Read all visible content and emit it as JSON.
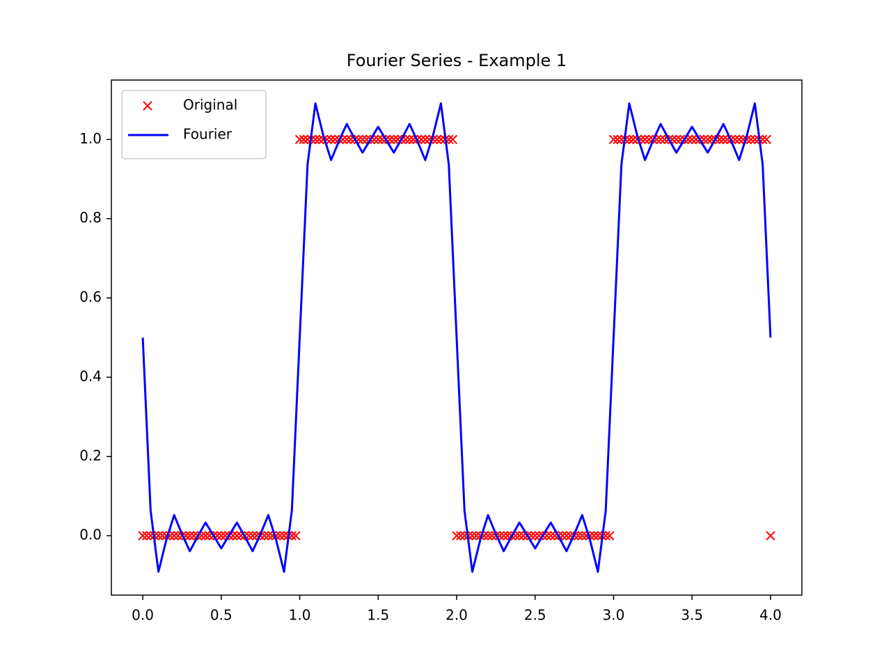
{
  "chart_data": {
    "type": "line",
    "title": "Fourier Series - Example 1",
    "xlim": [
      -0.2,
      4.2
    ],
    "ylim": [
      -0.15,
      1.15
    ],
    "xticks": [
      {
        "value": 0,
        "label": "0.0"
      },
      0.5,
      {
        "value": 1,
        "label": "1.0"
      },
      1.5,
      {
        "value": 2,
        "label": "2.0"
      },
      2.5,
      {
        "value": 3,
        "label": "3.0"
      },
      3.5,
      {
        "value": 4,
        "label": "4.0"
      }
    ],
    "yticks": [
      {
        "value": 0,
        "label": "0.0"
      },
      0.2,
      0.4,
      0.6,
      0.8,
      {
        "value": 1,
        "label": "1.0"
      }
    ],
    "grid": false,
    "legend": "upper left",
    "series": [
      {
        "name": "Original",
        "color": "#ff0000",
        "style": "marker",
        "x": [
          0,
          0.025,
          0.05,
          0.075,
          0.1,
          0.125,
          0.15,
          0.175,
          0.2,
          0.225,
          0.25,
          0.275,
          0.3,
          0.325,
          0.35,
          0.375,
          0.4,
          0.425,
          0.45,
          0.475,
          0.5,
          0.525,
          0.55,
          0.575,
          0.6,
          0.625,
          0.65,
          0.675,
          0.7,
          0.725,
          0.75,
          0.775,
          0.8,
          0.825,
          0.85,
          0.875,
          0.9,
          0.925,
          0.95,
          0.975,
          1,
          1.025,
          1.05,
          1.075,
          1.1,
          1.125,
          1.15,
          1.175,
          1.2,
          1.225,
          1.25,
          1.275,
          1.3,
          1.325,
          1.35,
          1.375,
          1.4,
          1.425,
          1.45,
          1.475,
          1.5,
          1.525,
          1.55,
          1.575,
          1.6,
          1.625,
          1.65,
          1.675,
          1.7,
          1.725,
          1.75,
          1.775,
          1.8,
          1.825,
          1.85,
          1.875,
          1.9,
          1.925,
          1.95,
          1.975,
          2,
          2.025,
          2.05,
          2.075,
          2.1,
          2.125,
          2.15,
          2.175,
          2.2,
          2.225,
          2.25,
          2.275,
          2.3,
          2.325,
          2.35,
          2.375,
          2.4,
          2.425,
          2.45,
          2.475,
          2.5,
          2.525,
          2.55,
          2.575,
          2.6,
          2.625,
          2.65,
          2.675,
          2.7,
          2.725,
          2.75,
          2.775,
          2.8,
          2.825,
          2.85,
          2.875,
          2.9,
          2.925,
          2.95,
          2.975,
          3,
          3.025,
          3.05,
          3.075,
          3.1,
          3.125,
          3.15,
          3.175,
          3.2,
          3.225,
          3.25,
          3.275,
          3.3,
          3.325,
          3.35,
          3.375,
          3.4,
          3.425,
          3.45,
          3.475,
          3.5,
          3.525,
          3.55,
          3.575,
          3.6,
          3.625,
          3.65,
          3.675,
          3.7,
          3.725,
          3.75,
          3.775,
          3.8,
          3.825,
          3.85,
          3.875,
          3.9,
          3.925,
          3.95,
          3.975,
          4
        ],
        "values": [
          0,
          0,
          0,
          0,
          0,
          0,
          0,
          0,
          0,
          0,
          0,
          0,
          0,
          0,
          0,
          0,
          0,
          0,
          0,
          0,
          0,
          0,
          0,
          0,
          0,
          0,
          0,
          0,
          0,
          0,
          0,
          0,
          0,
          0,
          0,
          0,
          0,
          0,
          0,
          0,
          1,
          1,
          1,
          1,
          1,
          1,
          1,
          1,
          1,
          1,
          1,
          1,
          1,
          1,
          1,
          1,
          1,
          1,
          1,
          1,
          1,
          1,
          1,
          1,
          1,
          1,
          1,
          1,
          1,
          1,
          1,
          1,
          1,
          1,
          1,
          1,
          1,
          1,
          1,
          1,
          0,
          0,
          0,
          0,
          0,
          0,
          0,
          0,
          0,
          0,
          0,
          0,
          0,
          0,
          0,
          0,
          0,
          0,
          0,
          0,
          0,
          0,
          0,
          0,
          0,
          0,
          0,
          0,
          0,
          0,
          0,
          0,
          0,
          0,
          0,
          0,
          0,
          0,
          0,
          0,
          1,
          1,
          1,
          1,
          1,
          1,
          1,
          1,
          1,
          1,
          1,
          1,
          1,
          1,
          1,
          1,
          1,
          1,
          1,
          1,
          1,
          1,
          1,
          1,
          1,
          1,
          1,
          1,
          1,
          1,
          1,
          1,
          1,
          1,
          1,
          1,
          1,
          1,
          1,
          1,
          0
        ]
      },
      {
        "name": "Fourier",
        "color": "#0000ff",
        "style": "line",
        "x": [
          0,
          0.05,
          0.1,
          0.15,
          0.2,
          0.25,
          0.3,
          0.35,
          0.4,
          0.45,
          0.5,
          0.55,
          0.6,
          0.65,
          0.7,
          0.75,
          0.8,
          0.85,
          0.9,
          0.95,
          1,
          1.05,
          1.1,
          1.15,
          1.2,
          1.25,
          1.3,
          1.35,
          1.4,
          1.45,
          1.5,
          1.55,
          1.6,
          1.65,
          1.7,
          1.75,
          1.8,
          1.85,
          1.9,
          1.95,
          2,
          2.05,
          2.1,
          2.15,
          2.2,
          2.25,
          2.3,
          2.35,
          2.4,
          2.45,
          2.5,
          2.55,
          2.6,
          2.65,
          2.7,
          2.75,
          2.8,
          2.85,
          2.9,
          2.95,
          3,
          3.05,
          3.1,
          3.15,
          3.2,
          3.25,
          3.3,
          3.35,
          3.4,
          3.45,
          3.5,
          3.55,
          3.6,
          3.65,
          3.7,
          3.75,
          3.8,
          3.85,
          3.9,
          3.95,
          4
        ],
        "values": [
          0.5,
          0.063,
          -0.091,
          -0.011,
          0.052,
          0.004,
          -0.039,
          -0.002,
          0.033,
          0.001,
          -0.032,
          0.001,
          0.033,
          -0.002,
          -0.039,
          0.004,
          0.052,
          -0.011,
          -0.091,
          0.063,
          0.5,
          0.937,
          1.091,
          1.011,
          0.948,
          0.996,
          1.039,
          1.002,
          0.967,
          0.999,
          1.032,
          0.999,
          0.967,
          1.002,
          1.039,
          0.996,
          0.948,
          1.011,
          1.091,
          0.937,
          0.5,
          0.063,
          -0.091,
          -0.011,
          0.052,
          0.004,
          -0.039,
          -0.002,
          0.033,
          0.001,
          -0.032,
          0.001,
          0.033,
          -0.002,
          -0.039,
          0.004,
          0.052,
          -0.011,
          -0.091,
          0.063,
          0.5,
          0.937,
          1.091,
          1.011,
          0.948,
          0.996,
          1.039,
          1.002,
          0.967,
          0.999,
          1.032,
          0.999,
          0.967,
          1.002,
          1.039,
          0.996,
          0.948,
          1.011,
          1.091,
          0.937,
          0.5
        ]
      }
    ]
  }
}
